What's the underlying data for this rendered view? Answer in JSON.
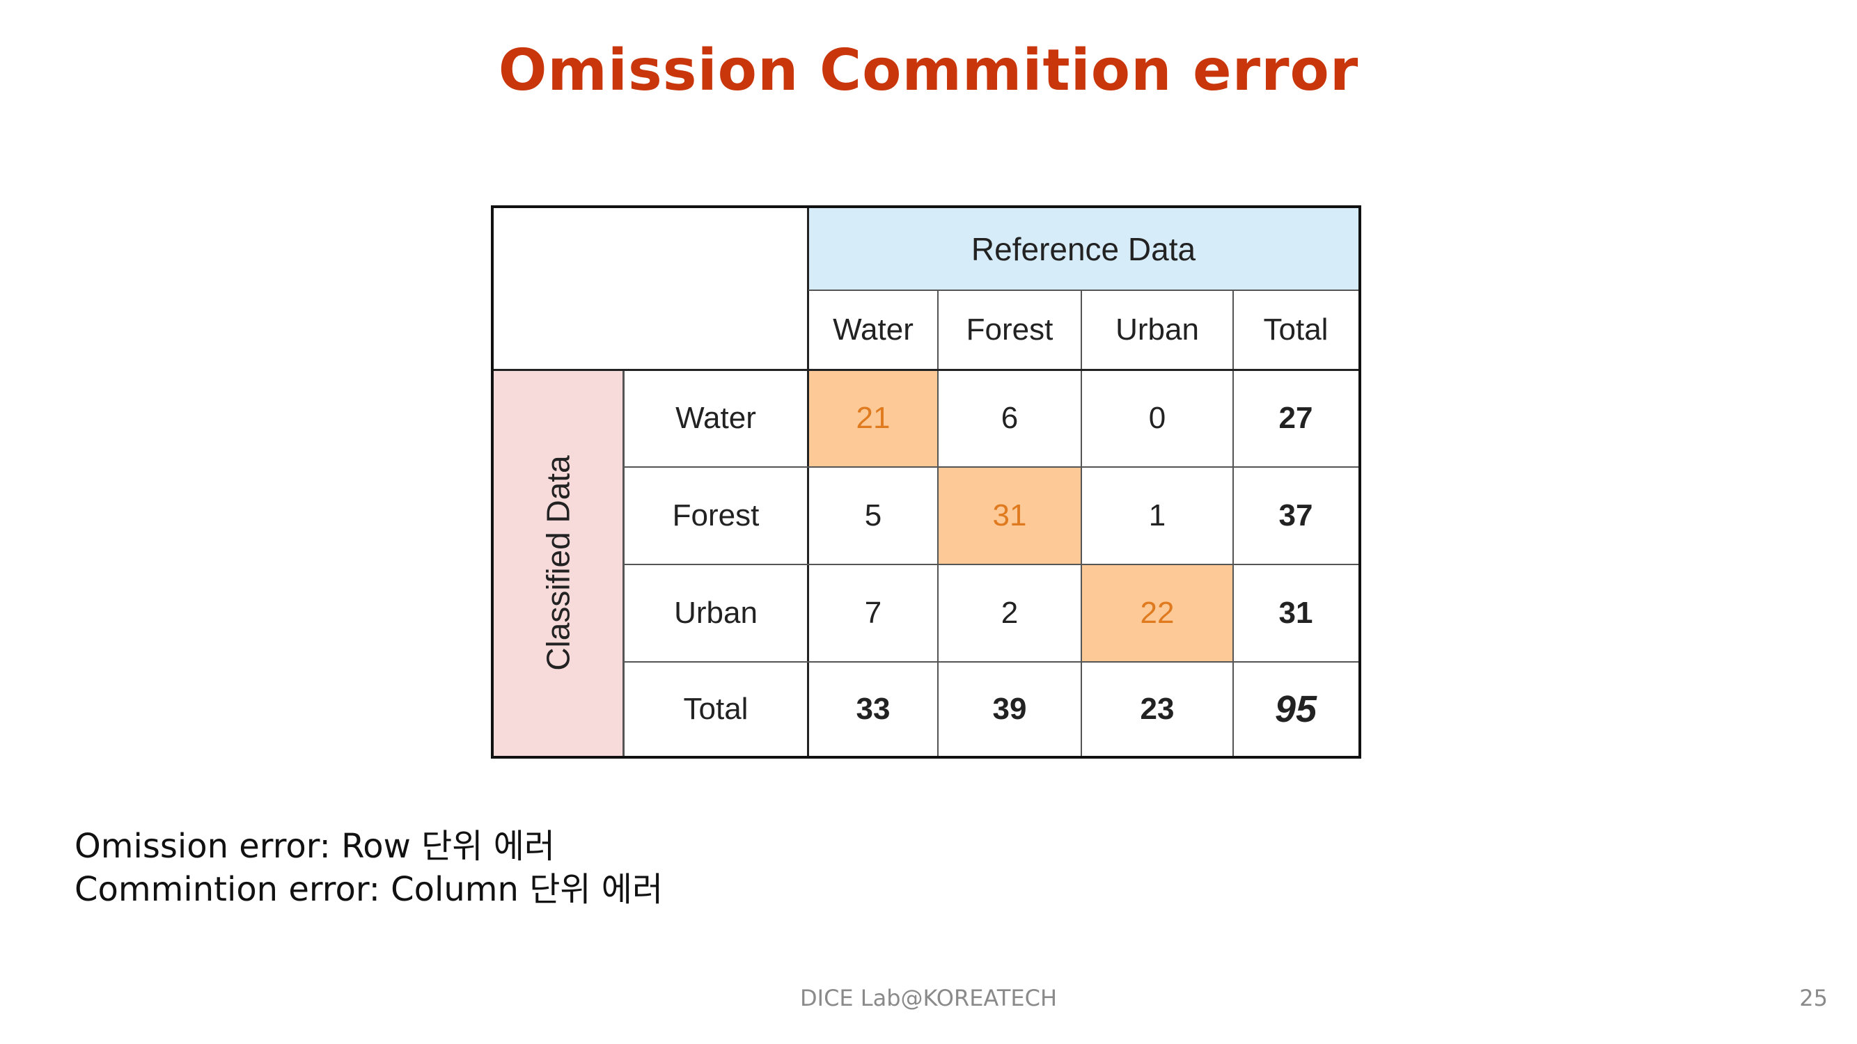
{
  "slide": {
    "title": "Omission Commition error",
    "notes": [
      "Omission error: Row 단위 에러",
      "Commintion error: Column 단위 에러"
    ],
    "footer": "DICE Lab@KOREATECH",
    "page_number": "25"
  },
  "matrix": {
    "reference_label": "Reference Data",
    "classified_label": "Classified Data",
    "columns": [
      "Water",
      "Forest",
      "Urban",
      "Total"
    ],
    "rows": [
      {
        "label": "Water",
        "values": [
          "21",
          "6",
          "0"
        ],
        "total": "27"
      },
      {
        "label": "Forest",
        "values": [
          "5",
          "31",
          "1"
        ],
        "total": "37"
      },
      {
        "label": "Urban",
        "values": [
          "7",
          "2",
          "22"
        ],
        "total": "31"
      }
    ],
    "total_row": {
      "label": "Total",
      "values": [
        "33",
        "39",
        "23"
      ],
      "total": "95"
    },
    "colors": {
      "diagonal_fill": "#fcc997",
      "diagonal_text": "#e07a1f",
      "reference_fill": "#d6ecf8",
      "classified_fill": "#f7dada"
    }
  }
}
